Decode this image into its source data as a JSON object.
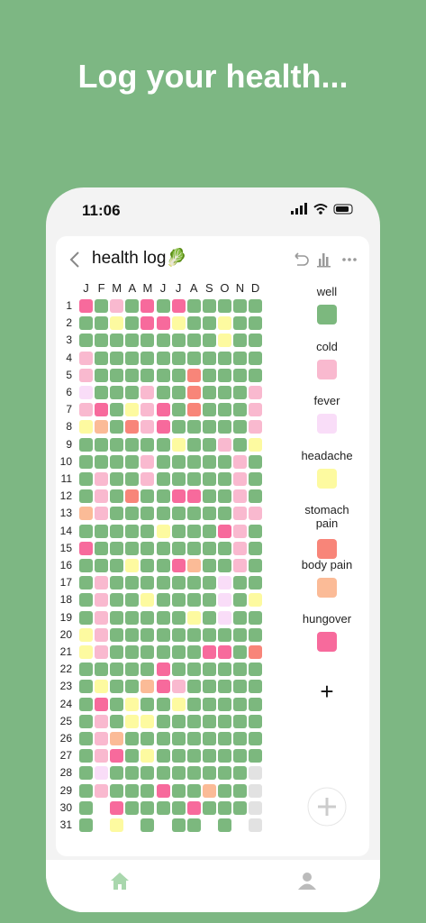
{
  "header": {
    "title": "Log your health..."
  },
  "status_bar": {
    "time": "11:06"
  },
  "app": {
    "title": "health log🥬",
    "months": [
      "J",
      "F",
      "M",
      "A",
      "M",
      "J",
      "J",
      "A",
      "S",
      "O",
      "N",
      "D"
    ],
    "days": [
      1,
      2,
      3,
      4,
      5,
      6,
      7,
      8,
      9,
      10,
      11,
      12,
      13,
      14,
      15,
      16,
      17,
      18,
      19,
      20,
      21,
      22,
      23,
      24,
      25,
      26,
      27,
      28,
      29,
      30,
      31
    ],
    "legend": [
      {
        "name": "well",
        "color": "#7cb87e"
      },
      {
        "name": "cold",
        "color": "#f9b9cf"
      },
      {
        "name": "fever",
        "color": "#f9ddf8"
      },
      {
        "name": "headache",
        "color": "#fdfaa0"
      },
      {
        "name": "stomach pain",
        "color": "#f88579"
      },
      {
        "name": "body pain",
        "color": "#fbbb97"
      },
      {
        "name": "hungover",
        "color": "#f76a9c"
      }
    ],
    "add_label": "+",
    "grid": [
      [
        "#f76a9c",
        "#7cb87e",
        "#f9b9cf",
        "#7cb87e",
        "#f76a9c",
        "#7cb87e",
        "#f76a9c",
        "#7cb87e",
        "#7cb87e",
        "#7cb87e",
        "#7cb87e",
        "#7cb87e"
      ],
      [
        "#7cb87e",
        "#7cb87e",
        "#fdfaa0",
        "#7cb87e",
        "#f76a9c",
        "#f76a9c",
        "#fdfaa0",
        "#7cb87e",
        "#7cb87e",
        "#fdfaa0",
        "#7cb87e",
        "#7cb87e"
      ],
      [
        "#7cb87e",
        "#7cb87e",
        "#7cb87e",
        "#7cb87e",
        "#7cb87e",
        "#7cb87e",
        "#7cb87e",
        "#7cb87e",
        "#7cb87e",
        "#fdfaa0",
        "#7cb87e",
        "#7cb87e"
      ],
      [
        "#f9b9cf",
        "#7cb87e",
        "#7cb87e",
        "#7cb87e",
        "#7cb87e",
        "#7cb87e",
        "#7cb87e",
        "#7cb87e",
        "#7cb87e",
        "#7cb87e",
        "#7cb87e",
        "#7cb87e"
      ],
      [
        "#f9b9cf",
        "#7cb87e",
        "#7cb87e",
        "#7cb87e",
        "#7cb87e",
        "#7cb87e",
        "#7cb87e",
        "#f88579",
        "#7cb87e",
        "#7cb87e",
        "#7cb87e",
        "#7cb87e"
      ],
      [
        "#f9ddf8",
        "#7cb87e",
        "#7cb87e",
        "#7cb87e",
        "#f9b9cf",
        "#7cb87e",
        "#7cb87e",
        "#f88579",
        "#7cb87e",
        "#7cb87e",
        "#7cb87e",
        "#f9b9cf"
      ],
      [
        "#f9b9cf",
        "#f76a9c",
        "#7cb87e",
        "#fdfaa0",
        "#f9b9cf",
        "#f76a9c",
        "#7cb87e",
        "#f88579",
        "#7cb87e",
        "#7cb87e",
        "#7cb87e",
        "#f9b9cf"
      ],
      [
        "#fdfaa0",
        "#fbbb97",
        "#7cb87e",
        "#f88579",
        "#f9b9cf",
        "#f76a9c",
        "#7cb87e",
        "#7cb87e",
        "#7cb87e",
        "#7cb87e",
        "#7cb87e",
        "#f9b9cf"
      ],
      [
        "#7cb87e",
        "#7cb87e",
        "#7cb87e",
        "#7cb87e",
        "#7cb87e",
        "#7cb87e",
        "#fdfaa0",
        "#7cb87e",
        "#7cb87e",
        "#f9b9cf",
        "#7cb87e",
        "#fdfaa0"
      ],
      [
        "#7cb87e",
        "#7cb87e",
        "#7cb87e",
        "#7cb87e",
        "#f9b9cf",
        "#7cb87e",
        "#7cb87e",
        "#7cb87e",
        "#7cb87e",
        "#7cb87e",
        "#f9b9cf",
        "#7cb87e"
      ],
      [
        "#7cb87e",
        "#f9b9cf",
        "#7cb87e",
        "#7cb87e",
        "#f9b9cf",
        "#7cb87e",
        "#7cb87e",
        "#7cb87e",
        "#7cb87e",
        "#7cb87e",
        "#f9b9cf",
        "#7cb87e"
      ],
      [
        "#7cb87e",
        "#f9b9cf",
        "#7cb87e",
        "#f88579",
        "#7cb87e",
        "#7cb87e",
        "#f76a9c",
        "#f76a9c",
        "#7cb87e",
        "#7cb87e",
        "#f9b9cf",
        "#7cb87e"
      ],
      [
        "#fbbb97",
        "#f9b9cf",
        "#7cb87e",
        "#7cb87e",
        "#7cb87e",
        "#7cb87e",
        "#7cb87e",
        "#7cb87e",
        "#7cb87e",
        "#7cb87e",
        "#f9b9cf",
        "#f9b9cf"
      ],
      [
        "#7cb87e",
        "#7cb87e",
        "#7cb87e",
        "#7cb87e",
        "#7cb87e",
        "#fdfaa0",
        "#7cb87e",
        "#7cb87e",
        "#7cb87e",
        "#f76a9c",
        "#f9b9cf",
        "#7cb87e"
      ],
      [
        "#f76a9c",
        "#7cb87e",
        "#7cb87e",
        "#7cb87e",
        "#7cb87e",
        "#7cb87e",
        "#7cb87e",
        "#7cb87e",
        "#7cb87e",
        "#7cb87e",
        "#f9b9cf",
        "#7cb87e"
      ],
      [
        "#7cb87e",
        "#7cb87e",
        "#7cb87e",
        "#fdfaa0",
        "#7cb87e",
        "#7cb87e",
        "#f76a9c",
        "#fbbb97",
        "#7cb87e",
        "#7cb87e",
        "#f9b9cf",
        "#7cb87e"
      ],
      [
        "#7cb87e",
        "#f9b9cf",
        "#7cb87e",
        "#7cb87e",
        "#7cb87e",
        "#7cb87e",
        "#7cb87e",
        "#7cb87e",
        "#7cb87e",
        "#f9ddf8",
        "#7cb87e",
        "#7cb87e"
      ],
      [
        "#7cb87e",
        "#f9b9cf",
        "#7cb87e",
        "#7cb87e",
        "#fdfaa0",
        "#7cb87e",
        "#7cb87e",
        "#7cb87e",
        "#7cb87e",
        "#f9ddf8",
        "#7cb87e",
        "#fdfaa0"
      ],
      [
        "#7cb87e",
        "#f9b9cf",
        "#7cb87e",
        "#7cb87e",
        "#7cb87e",
        "#7cb87e",
        "#7cb87e",
        "#fdfaa0",
        "#7cb87e",
        "#f9ddf8",
        "#7cb87e",
        "#7cb87e"
      ],
      [
        "#fdfaa0",
        "#f9b9cf",
        "#7cb87e",
        "#7cb87e",
        "#7cb87e",
        "#7cb87e",
        "#7cb87e",
        "#7cb87e",
        "#7cb87e",
        "#7cb87e",
        "#7cb87e",
        "#7cb87e"
      ],
      [
        "#fdfaa0",
        "#f9b9cf",
        "#7cb87e",
        "#7cb87e",
        "#7cb87e",
        "#7cb87e",
        "#7cb87e",
        "#7cb87e",
        "#f76a9c",
        "#f76a9c",
        "#7cb87e",
        "#f88579"
      ],
      [
        "#7cb87e",
        "#7cb87e",
        "#7cb87e",
        "#7cb87e",
        "#7cb87e",
        "#f76a9c",
        "#7cb87e",
        "#7cb87e",
        "#7cb87e",
        "#7cb87e",
        "#7cb87e",
        "#7cb87e"
      ],
      [
        "#7cb87e",
        "#fdfaa0",
        "#7cb87e",
        "#7cb87e",
        "#fbbb97",
        "#f76a9c",
        "#f9b9cf",
        "#7cb87e",
        "#7cb87e",
        "#7cb87e",
        "#7cb87e",
        "#7cb87e"
      ],
      [
        "#7cb87e",
        "#f76a9c",
        "#7cb87e",
        "#fdfaa0",
        "#7cb87e",
        "#7cb87e",
        "#fdfaa0",
        "#7cb87e",
        "#7cb87e",
        "#7cb87e",
        "#7cb87e",
        "#7cb87e"
      ],
      [
        "#7cb87e",
        "#f9b9cf",
        "#7cb87e",
        "#fdfaa0",
        "#fdfaa0",
        "#7cb87e",
        "#7cb87e",
        "#7cb87e",
        "#7cb87e",
        "#7cb87e",
        "#7cb87e",
        "#7cb87e"
      ],
      [
        "#7cb87e",
        "#f9b9cf",
        "#fbbb97",
        "#7cb87e",
        "#7cb87e",
        "#7cb87e",
        "#7cb87e",
        "#7cb87e",
        "#7cb87e",
        "#7cb87e",
        "#7cb87e",
        "#7cb87e"
      ],
      [
        "#7cb87e",
        "#f9b9cf",
        "#f76a9c",
        "#7cb87e",
        "#fdfaa0",
        "#7cb87e",
        "#7cb87e",
        "#7cb87e",
        "#7cb87e",
        "#7cb87e",
        "#7cb87e",
        "#7cb87e"
      ],
      [
        "#7cb87e",
        "#f9ddf8",
        "#7cb87e",
        "#7cb87e",
        "#7cb87e",
        "#7cb87e",
        "#7cb87e",
        "#7cb87e",
        "#7cb87e",
        "#7cb87e",
        "#7cb87e",
        "#e2e2e2"
      ],
      [
        "#7cb87e",
        "#f9b9cf",
        "#7cb87e",
        "#7cb87e",
        "#7cb87e",
        "#f76a9c",
        "#7cb87e",
        "#7cb87e",
        "#fbbb97",
        "#7cb87e",
        "#7cb87e",
        "#e2e2e2"
      ],
      [
        "#7cb87e",
        null,
        "#f76a9c",
        "#7cb87e",
        "#7cb87e",
        "#7cb87e",
        "#7cb87e",
        "#f76a9c",
        "#7cb87e",
        "#7cb87e",
        "#7cb87e",
        "#e2e2e2"
      ],
      [
        "#7cb87e",
        null,
        "#fdfaa0",
        null,
        "#7cb87e",
        null,
        "#7cb87e",
        "#7cb87e",
        null,
        "#7cb87e",
        null,
        "#e2e2e2"
      ]
    ]
  }
}
